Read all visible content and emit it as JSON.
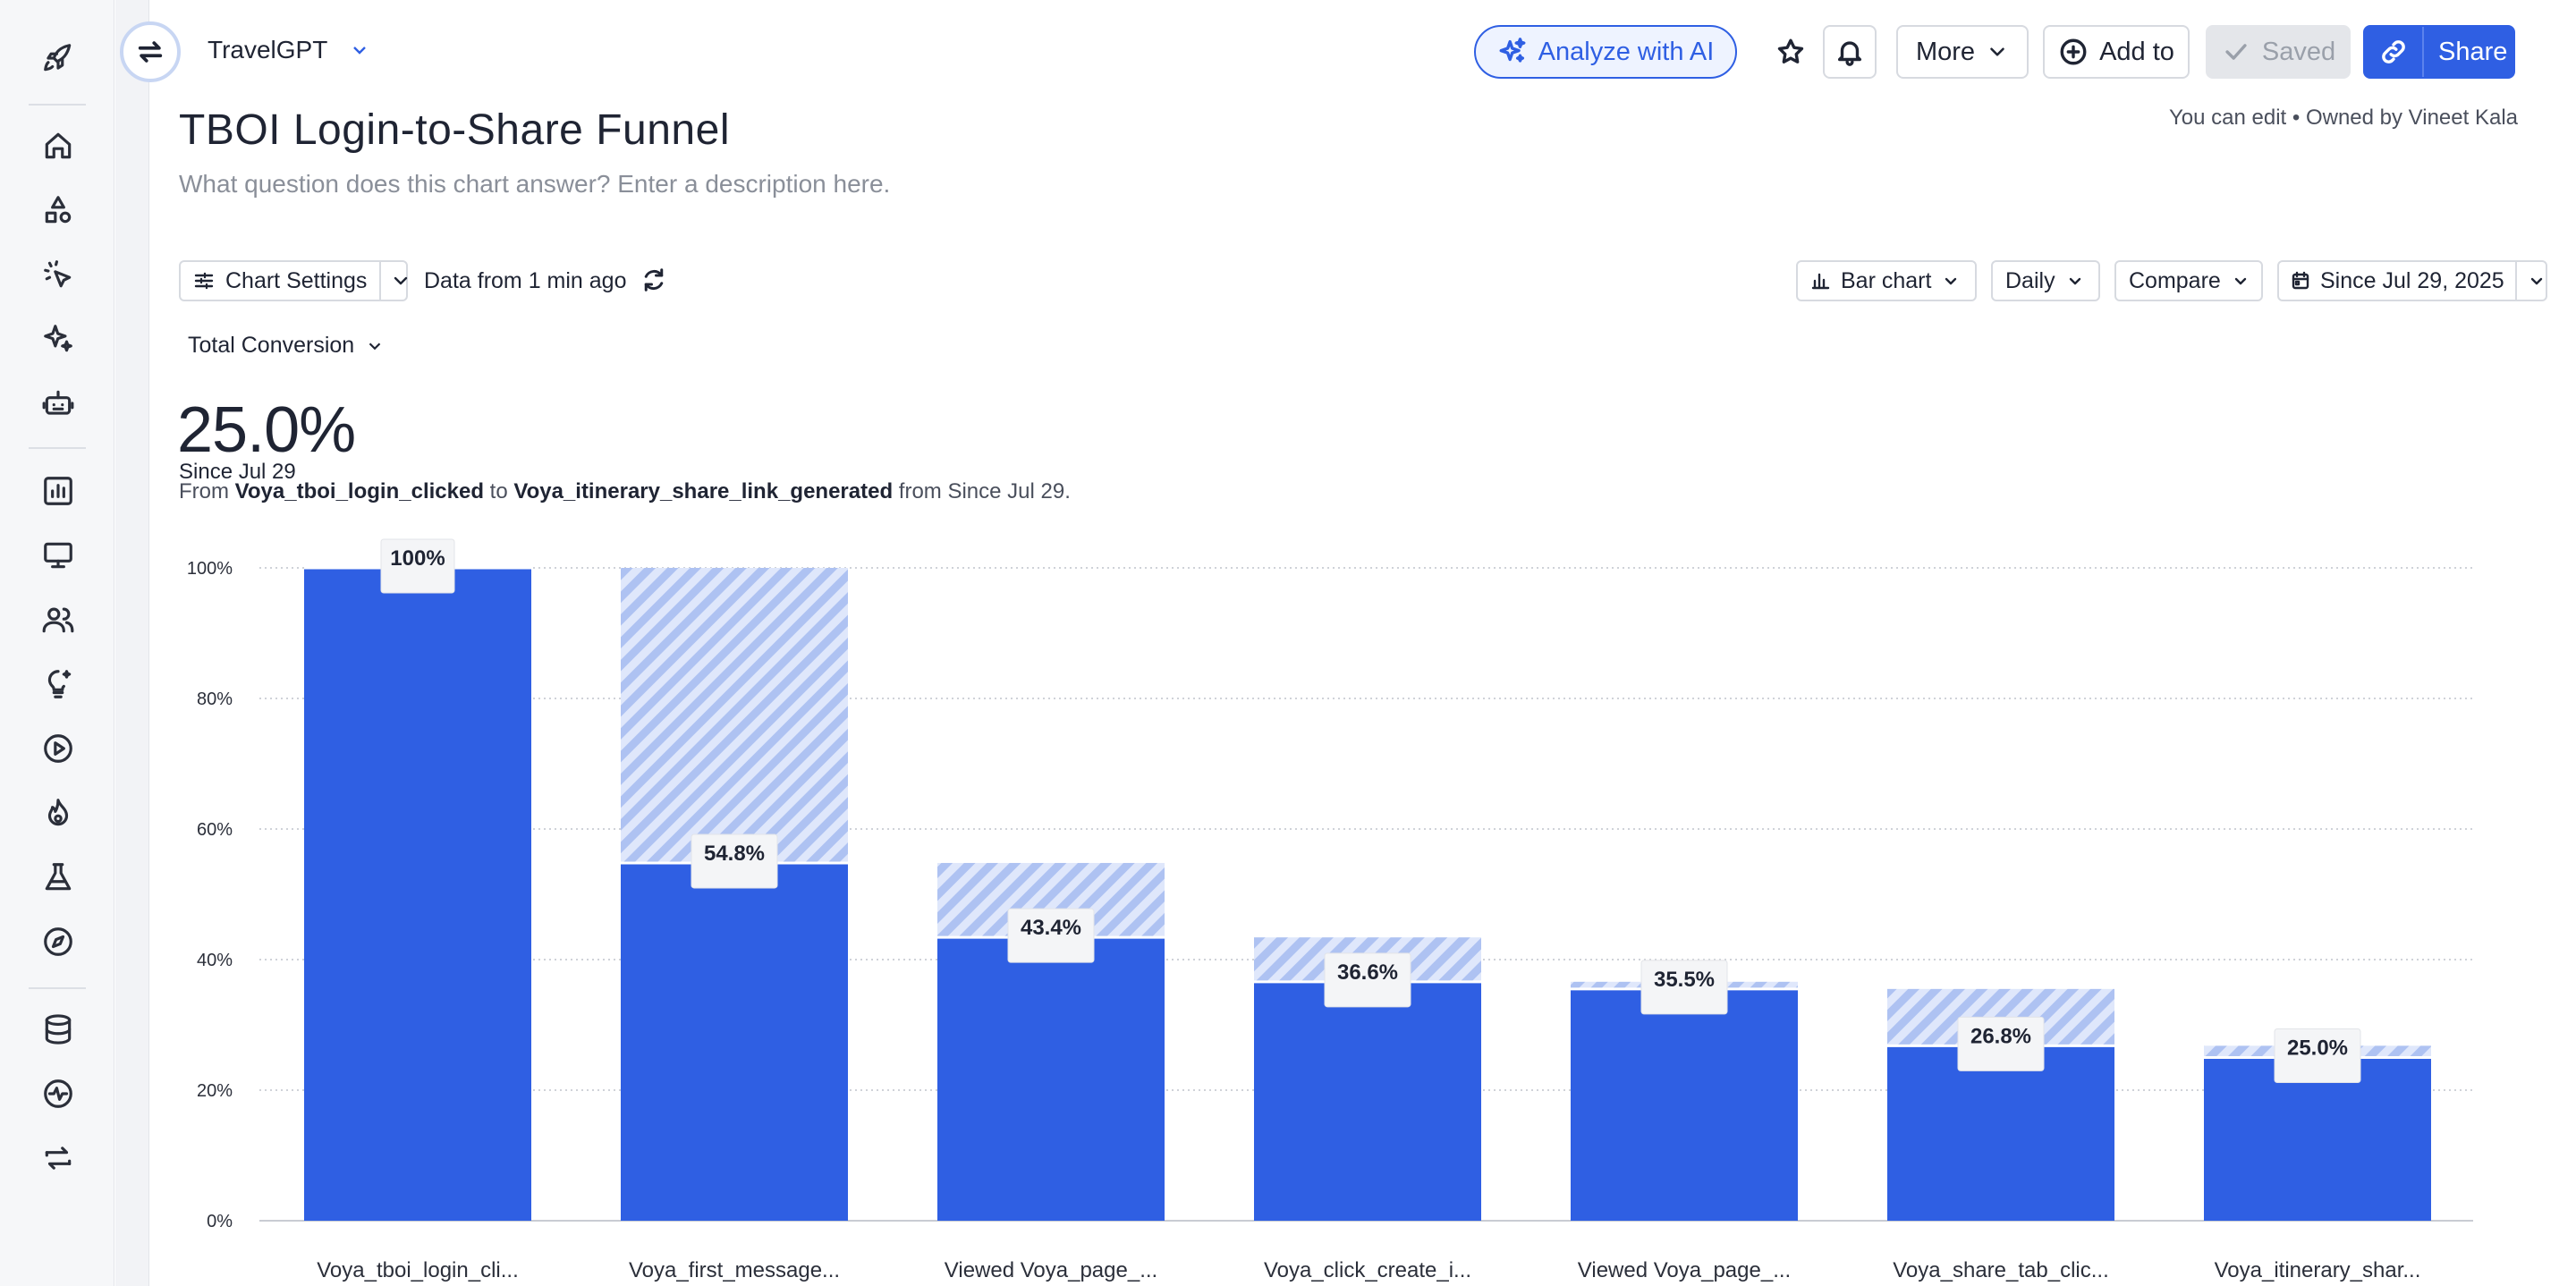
{
  "topbar": {
    "project": "TravelGPT",
    "analyze_label": "Analyze with AI",
    "more_label": "More",
    "addto_label": "Add to",
    "saved_label": "Saved",
    "share_label": "Share"
  },
  "header": {
    "title": "TBOI Login-to-Share Funnel",
    "permission": "You can edit",
    "separator": "•",
    "owner": "Owned by Vineet Kala",
    "description_placeholder": "What question does this chart answer? Enter a description here."
  },
  "toolbar": {
    "chart_settings_label": "Chart Settings",
    "data_freshness": "Data from 1 min ago",
    "chart_type_label": "Bar chart",
    "interval_label": "Daily",
    "compare_label": "Compare",
    "date_range_label": "Since Jul 29, 2025",
    "metric_label": "Total Conversion"
  },
  "summary": {
    "value": "25.0%",
    "since": "Since Jul 29",
    "desc_prefix": "From",
    "from_event": "Voya_tboi_login_clicked",
    "desc_mid": "to",
    "to_event": "Voya_itinerary_share_link_generated",
    "desc_suffix": "from Since Jul 29."
  },
  "chart_data": {
    "type": "bar",
    "categories": [
      "Voya_tboi_login_cli...",
      "Voya_first_message...",
      "Viewed Voya_page_...",
      "Voya_click_create_i...",
      "Viewed Voya_page_...",
      "Voya_share_tab_clic...",
      "Voya_itinerary_shar..."
    ],
    "values": [
      100,
      54.8,
      43.4,
      36.6,
      35.5,
      26.8,
      25.0
    ],
    "value_labels": [
      "100%",
      "54.8%",
      "43.4%",
      "36.6%",
      "35.5%",
      "26.8%",
      "25.0%"
    ],
    "dropoff_from": [
      null,
      100,
      54.8,
      43.4,
      36.6,
      35.5,
      26.8
    ],
    "yticks": [
      "0%",
      "20%",
      "40%",
      "60%",
      "80%",
      "100%"
    ],
    "ylim": [
      0,
      100
    ],
    "grid": true,
    "bar_color": "#2f5fe3",
    "dropoff_color": "#c9d6f5"
  }
}
